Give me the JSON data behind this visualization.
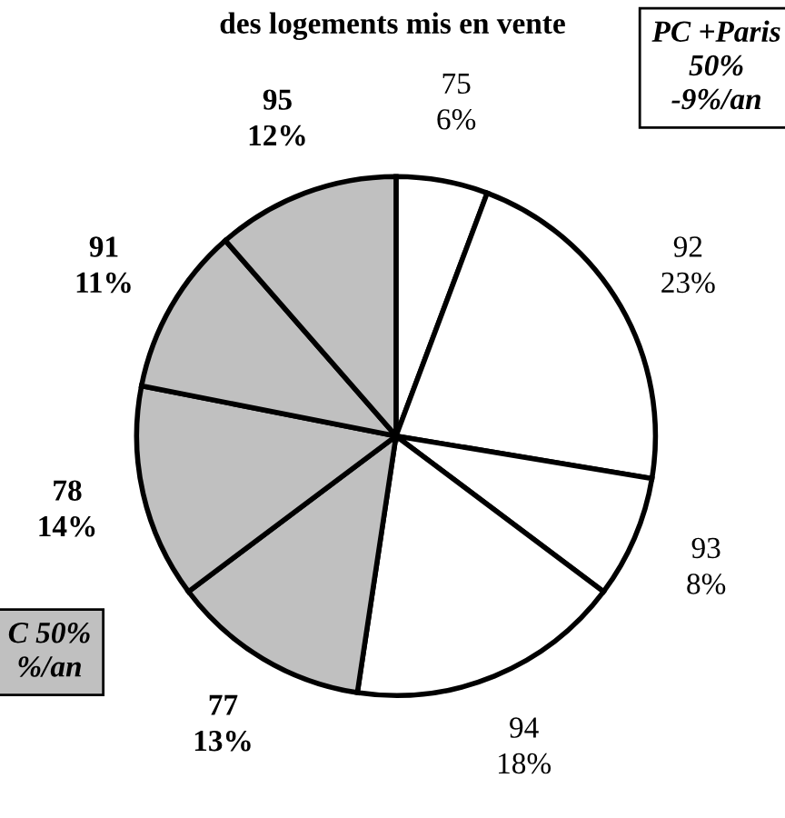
{
  "chart_data": {
    "type": "pie",
    "title": "des logements mis en vente",
    "categories": [
      "75",
      "92",
      "93",
      "94",
      "77",
      "78",
      "91",
      "95"
    ],
    "values": [
      6,
      23,
      8,
      18,
      13,
      14,
      11,
      12
    ],
    "value_labels": [
      "6%",
      "23%",
      "8%",
      "18%",
      "13%",
      "14%",
      "11%",
      "12%"
    ],
    "colors": [
      "#ffffff",
      "#ffffff",
      "#ffffff",
      "#ffffff",
      "#c0c0c0",
      "#c0c0c0",
      "#c0c0c0",
      "#c0c0c0"
    ],
    "annotations": [
      "PC +Paris\n50%\n-9%/an",
      "C 50%\n%/an"
    ]
  }
}
